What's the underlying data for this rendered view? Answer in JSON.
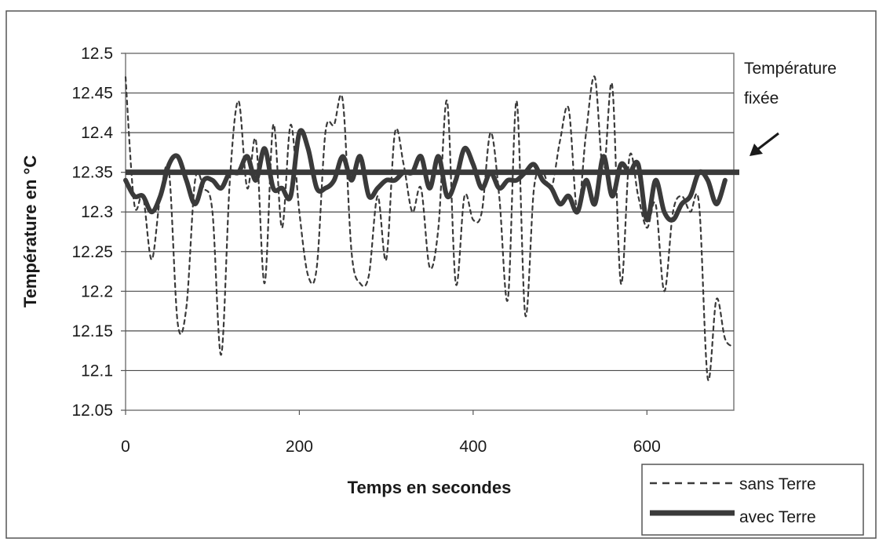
{
  "chart_data": {
    "type": "line",
    "xlabel": "Temps en secondes",
    "ylabel": "Température en °C",
    "xlim": [
      0,
      700
    ],
    "ylim": [
      12.05,
      12.5
    ],
    "xticks": [
      0,
      200,
      400,
      600
    ],
    "xtick_labels": [
      "0",
      "200",
      "400",
      "600"
    ],
    "yticks": [
      12.05,
      12.1,
      12.15,
      12.2,
      12.25,
      12.3,
      12.35,
      12.4,
      12.45,
      12.5
    ],
    "ytick_labels": [
      "12.05",
      "12.1",
      "12.15",
      "12.2",
      "12.25",
      "12.3",
      "12.35",
      "12.4",
      "12.45",
      "12.5"
    ],
    "grid": "horizontal",
    "legend_placement": "bottom-right",
    "reference_line": {
      "y": 12.35,
      "label_line1": "Température",
      "label_line2": "fixée",
      "arrow": "↙"
    },
    "series": [
      {
        "name": "sans Terre",
        "style": "dashed",
        "color": "#3a3a3a",
        "x": [
          0,
          10,
          20,
          30,
          40,
          50,
          60,
          70,
          80,
          90,
          100,
          110,
          120,
          130,
          140,
          150,
          160,
          170,
          180,
          190,
          200,
          210,
          220,
          230,
          240,
          250,
          260,
          270,
          280,
          290,
          300,
          310,
          320,
          330,
          340,
          350,
          360,
          370,
          380,
          390,
          400,
          410,
          420,
          430,
          440,
          450,
          460,
          470,
          480,
          490,
          500,
          510,
          520,
          530,
          540,
          550,
          560,
          570,
          580,
          590,
          600,
          610,
          620,
          630,
          640,
          650,
          660,
          670,
          680,
          690,
          700
        ],
        "values": [
          12.47,
          12.31,
          12.32,
          12.24,
          12.32,
          12.35,
          12.16,
          12.18,
          12.34,
          12.33,
          12.3,
          12.12,
          12.34,
          12.44,
          12.33,
          12.39,
          12.21,
          12.41,
          12.28,
          12.41,
          12.3,
          12.22,
          12.23,
          12.4,
          12.41,
          12.44,
          12.25,
          12.21,
          12.22,
          12.32,
          12.24,
          12.4,
          12.36,
          12.3,
          12.33,
          12.23,
          12.28,
          12.44,
          12.21,
          12.32,
          12.29,
          12.3,
          12.4,
          12.32,
          12.19,
          12.44,
          12.17,
          12.33,
          12.35,
          12.33,
          12.39,
          12.43,
          12.3,
          12.4,
          12.47,
          12.35,
          12.46,
          12.21,
          12.37,
          12.32,
          12.28,
          12.31,
          12.2,
          12.3,
          12.32,
          12.3,
          12.31,
          12.09,
          12.19,
          12.14,
          12.13
        ]
      },
      {
        "name": "avec Terre",
        "style": "solid",
        "color": "#3a3a3a",
        "x": [
          0,
          10,
          20,
          30,
          40,
          50,
          60,
          70,
          80,
          90,
          100,
          110,
          120,
          130,
          140,
          150,
          160,
          170,
          180,
          190,
          200,
          210,
          220,
          230,
          240,
          250,
          260,
          270,
          280,
          290,
          300,
          310,
          320,
          330,
          340,
          350,
          360,
          370,
          380,
          390,
          400,
          410,
          420,
          430,
          440,
          450,
          460,
          470,
          480,
          490,
          500,
          510,
          520,
          530,
          540,
          550,
          560,
          570,
          580,
          590,
          600,
          610,
          620,
          630,
          640,
          650,
          660,
          670,
          680,
          690
        ],
        "values": [
          12.34,
          12.32,
          12.32,
          12.3,
          12.32,
          12.36,
          12.37,
          12.34,
          12.31,
          12.34,
          12.34,
          12.33,
          12.35,
          12.35,
          12.37,
          12.34,
          12.38,
          12.33,
          12.33,
          12.32,
          12.4,
          12.38,
          12.33,
          12.33,
          12.34,
          12.37,
          12.34,
          12.37,
          12.32,
          12.33,
          12.34,
          12.34,
          12.35,
          12.35,
          12.37,
          12.33,
          12.37,
          12.32,
          12.34,
          12.38,
          12.36,
          12.33,
          12.35,
          12.33,
          12.34,
          12.34,
          12.35,
          12.36,
          12.34,
          12.33,
          12.31,
          12.32,
          12.3,
          12.34,
          12.31,
          12.37,
          12.32,
          12.36,
          12.35,
          12.36,
          12.29,
          12.34,
          12.3,
          12.29,
          12.31,
          12.32,
          12.35,
          12.34,
          12.31,
          12.34
        ]
      }
    ]
  }
}
